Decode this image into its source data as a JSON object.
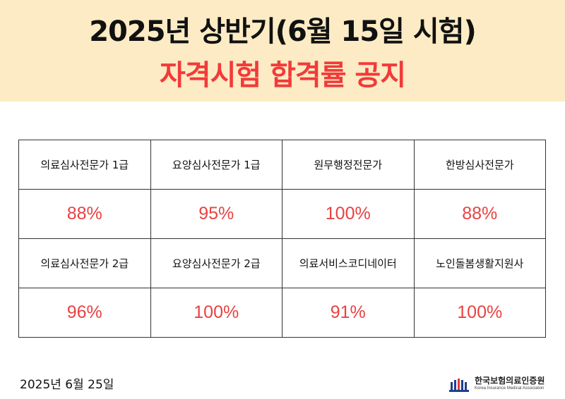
{
  "header": {
    "title_line1": "2025년 상반기(6월 15일 시험)",
    "title_line2": "자격시험 합격률 공지"
  },
  "results": {
    "row1": [
      {
        "name": "의료심사전문가 1급",
        "rate": "88%"
      },
      {
        "name": "요양심사전문가 1급",
        "rate": "95%"
      },
      {
        "name": "원무행정전문가",
        "rate": "100%"
      },
      {
        "name": "한방심사전문가",
        "rate": "88%"
      }
    ],
    "row2": [
      {
        "name": "의료심사전문가 2급",
        "rate": "96%"
      },
      {
        "name": "요양심사전문가 2급",
        "rate": "100%"
      },
      {
        "name": "의료서비스코디네이터",
        "rate": "91%"
      },
      {
        "name": "노인돌봄생활지원사",
        "rate": "100%"
      }
    ]
  },
  "footer": {
    "date": "2025년 6월 25일",
    "org_name": "한국보험의료인증원",
    "org_name_en": "Korea Insurance Medical Association"
  },
  "colors": {
    "banner_bg": "#fcebc4",
    "accent_red": "#f23a3a",
    "rate_red": "#e84242"
  },
  "icons": {
    "logo": "org-logo-icon"
  }
}
